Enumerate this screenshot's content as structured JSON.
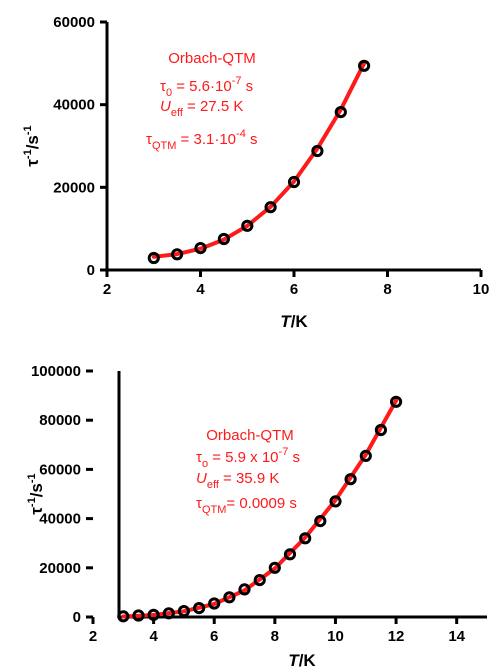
{
  "chart_data": [
    {
      "type": "scatter",
      "xlabel": {
        "italic": "T",
        "rest": "/K"
      },
      "ylabel": {
        "base": "τ",
        "sup1": "-1",
        "mid": "/s",
        "sup2": "-1"
      },
      "xlim": [
        2,
        10
      ],
      "ylim": [
        0,
        60000
      ],
      "xticks": [
        "2",
        "4",
        "6",
        "8",
        "10"
      ],
      "yticks": [
        "0",
        "20000",
        "40000",
        "60000"
      ],
      "grid": false,
      "series": [
        {
          "x": [
            3.0,
            3.5,
            4.0,
            4.5,
            5.0,
            5.5,
            6.0,
            6.5,
            7.0,
            7.5
          ],
          "y": [
            2900,
            3800,
            5300,
            7500,
            10700,
            15200,
            21300,
            28800,
            38200,
            49400
          ]
        }
      ],
      "fit": {
        "color": "#ff1a1a",
        "x": [
          3.0,
          3.5,
          4.0,
          4.5,
          5.0,
          5.5,
          6.0,
          6.5,
          7.0,
          7.5
        ],
        "y": [
          3200,
          3850,
          5150,
          7350,
          10700,
          15300,
          21400,
          29400,
          38800,
          50000
        ]
      },
      "annotation": {
        "title": "Orbach-QTM",
        "line1": {
          "pre": "τ",
          "sub": "0",
          "mid": " = 5.6·10",
          "sup": "-7",
          "post": " s"
        },
        "line2": {
          "pre": "U",
          "sub": "eff",
          "post": " = 27.5 K"
        },
        "line3": {
          "pre": "τ",
          "sub": "QTM",
          "mid": " = 3.1·10",
          "sup": "-4",
          "post": " s"
        }
      }
    },
    {
      "type": "scatter",
      "xlabel": {
        "italic": "T",
        "rest": "/K"
      },
      "ylabel": {
        "base": "τ",
        "sup1": "-1",
        "mid": "/s",
        "sup2": "-1"
      },
      "xlim": [
        2,
        15
      ],
      "ylim": [
        0,
        100000
      ],
      "xticks": [
        "2",
        "4",
        "6",
        "8",
        "10",
        "12",
        "14"
      ],
      "yticks": [
        "0",
        "20000",
        "40000",
        "60000",
        "80000",
        "100000"
      ],
      "grid": false,
      "series": [
        {
          "x": [
            3.0,
            3.5,
            4.0,
            4.5,
            5.0,
            5.5,
            6.0,
            6.5,
            7.0,
            7.5,
            8.0,
            8.5,
            9.0,
            9.5,
            10.0,
            10.5,
            11.0,
            11.5,
            12.0
          ],
          "y": [
            300,
            600,
            900,
            1500,
            2400,
            3600,
            5500,
            8000,
            11200,
            15000,
            20000,
            25500,
            32000,
            39000,
            47000,
            56000,
            65500,
            76000,
            87500
          ]
        }
      ],
      "fit": {
        "color": "#ff1a1a",
        "x": [
          3.0,
          4.0,
          5.0,
          6.0,
          7.0,
          8.0,
          9.0,
          10.0,
          11.0,
          12.0
        ],
        "y": [
          200,
          800,
          2300,
          5300,
          10800,
          19700,
          32300,
          47500,
          66000,
          88000
        ]
      },
      "annotation": {
        "title": "Orbach-QTM",
        "line1": {
          "pre": "τ",
          "sub": "o",
          "mid": " = 5.9  x 10",
          "sup": "-7",
          "post": " s"
        },
        "line2": {
          "pre": "U",
          "sub": "eff",
          "post": " = 35.9 K"
        },
        "line3": {
          "pre": "τ",
          "sub": "QTM",
          "mid": "= 0.0009 s",
          "sup": "",
          "post": ""
        }
      }
    }
  ]
}
